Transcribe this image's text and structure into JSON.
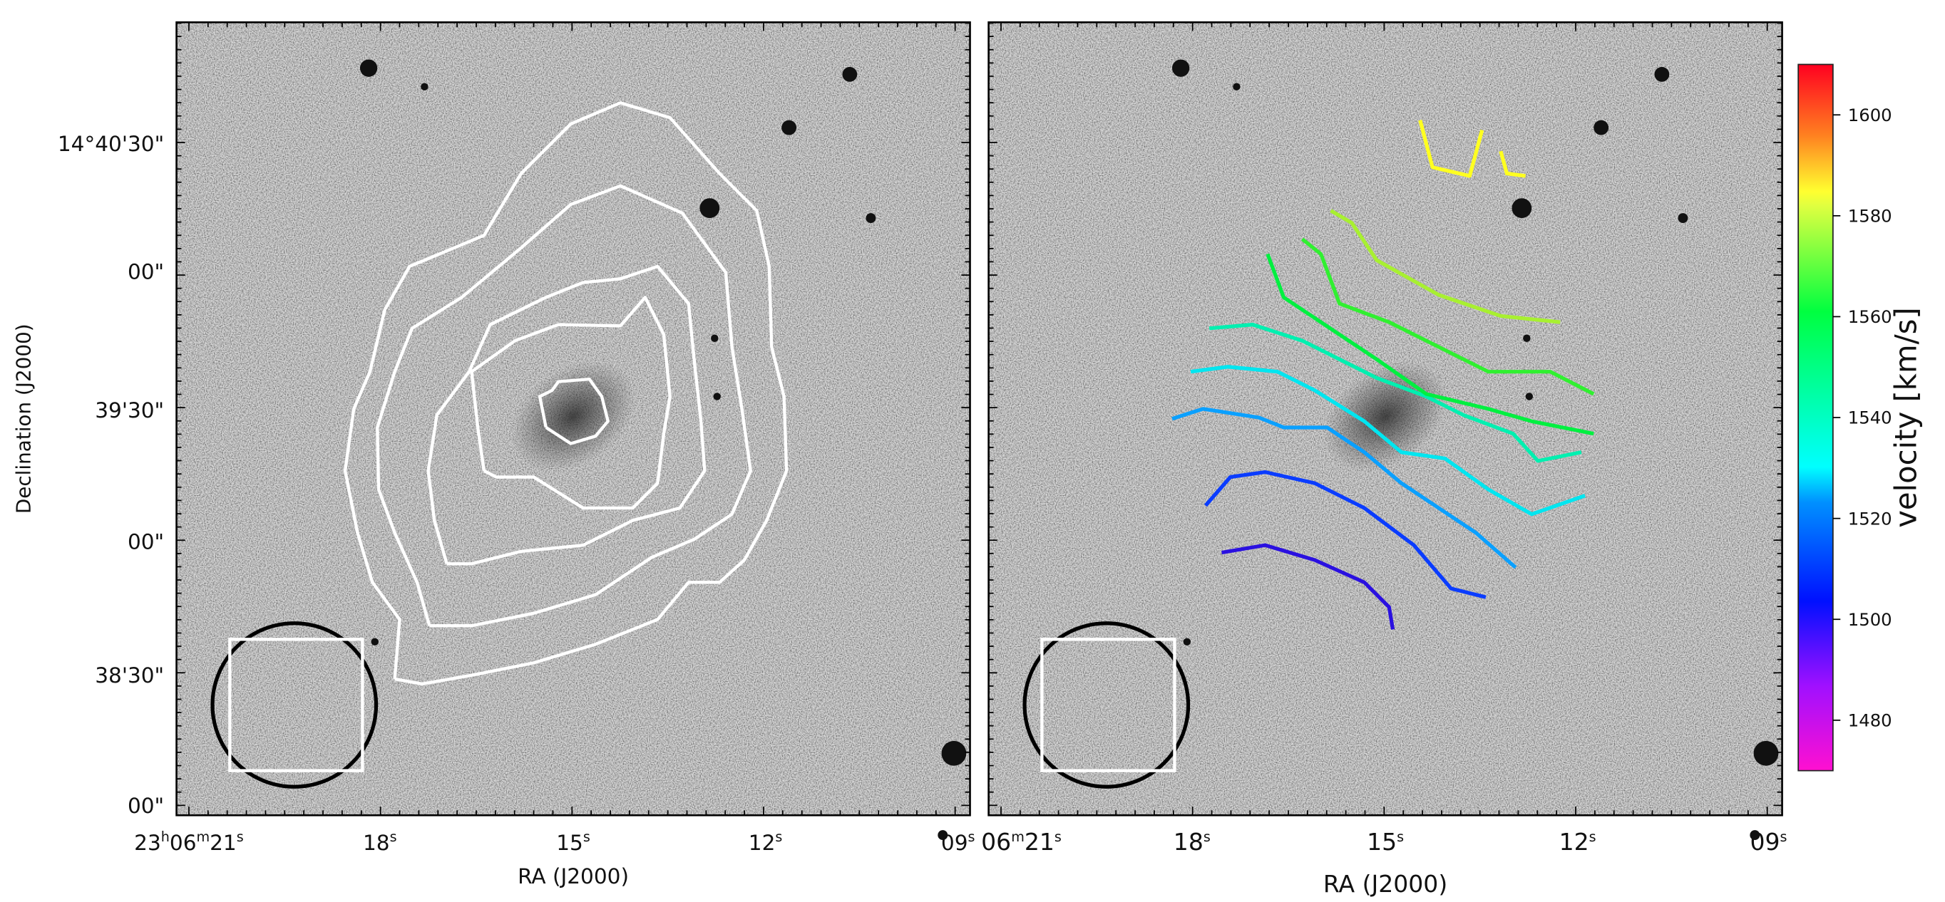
{
  "chart_data": [
    {
      "type": "heatmap",
      "panel": "left",
      "image": "greyscale optical image",
      "overlay": "white column-density contours",
      "contour_color": "#ffffff",
      "xlabel": "RA (J2000)",
      "ylabel": "Declination (J2000)",
      "x_ticks": [
        "23h06m21s",
        "18s",
        "15s",
        "12s",
        "09s"
      ],
      "y_ticks": [
        "14°40'30\"",
        "00\"",
        "39'30\"",
        "00\"",
        "38'30\"",
        "00\""
      ],
      "beam": {
        "shape": "circle",
        "color": "#000000"
      },
      "inset_box_color": "#ffffff"
    },
    {
      "type": "heatmap",
      "panel": "right",
      "image": "greyscale optical image",
      "overlay": "velocity contours coloured by velocity",
      "xlabel": "RA (J2000)",
      "x_ticks": [
        "06m21s",
        "18s",
        "15s",
        "12s",
        "09s"
      ],
      "velocity_contours": [
        {
          "velocity": 1505,
          "color": "#2a10e0"
        },
        {
          "velocity": 1512,
          "color": "#0a3cff"
        },
        {
          "velocity": 1520,
          "color": "#0aa0ff"
        },
        {
          "velocity": 1528,
          "color": "#00e6f0"
        },
        {
          "velocity": 1538,
          "color": "#00f0b0"
        },
        {
          "velocity": 1553,
          "color": "#00f040"
        },
        {
          "velocity": 1560,
          "color": "#30f030"
        },
        {
          "velocity": 1570,
          "color": "#a8f030"
        },
        {
          "velocity": 1580,
          "color": "#ffff20"
        }
      ],
      "colorbar": {
        "label": "velocity [km/s]",
        "range": [
          1470,
          1610
        ],
        "ticks": [
          "1480",
          "1500",
          "1520",
          "1540",
          "1560",
          "1580",
          "1600"
        ],
        "colormap": "gist_rainbow (magenta-blue-cyan-green-yellow-red)"
      },
      "beam": {
        "shape": "circle",
        "color": "#000000"
      },
      "inset_box_color": "#ffffff"
    }
  ]
}
